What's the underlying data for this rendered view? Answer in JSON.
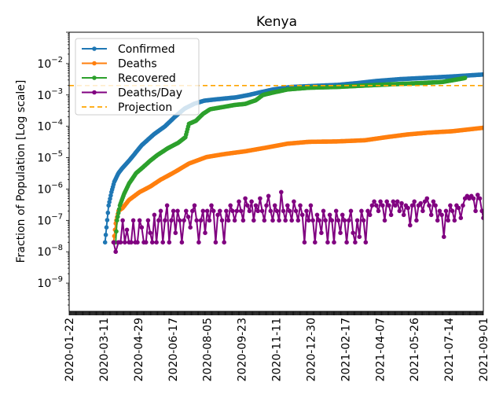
{
  "chart_data": {
    "type": "line",
    "title": "Kenya",
    "ylabel": "Fraction of Population [Log scale]",
    "xlabel": "",
    "yscale": "log",
    "ylim_exp": [
      -9.9,
      -1.0
    ],
    "xlim": [
      "2020-01-22",
      "2021-09-01"
    ],
    "x_tick_labels": [
      "2020-01-22",
      "2020-03-11",
      "2020-04-29",
      "2020-06-17",
      "2020-08-05",
      "2020-09-23",
      "2020-11-11",
      "2020-12-30",
      "2021-02-17",
      "2021-04-07",
      "2021-05-26",
      "2021-07-14",
      "2021-09-01"
    ],
    "y_ticks": [
      {
        "exp": -2,
        "base": "10",
        "sup": "−2"
      },
      {
        "exp": -3,
        "base": "10",
        "sup": "−3"
      },
      {
        "exp": -4,
        "base": "10",
        "sup": "−4"
      },
      {
        "exp": -5,
        "base": "10",
        "sup": "−5"
      },
      {
        "exp": -6,
        "base": "10",
        "sup": "−6"
      },
      {
        "exp": -7,
        "base": "10",
        "sup": "−7"
      },
      {
        "exp": -8,
        "base": "10",
        "sup": "−8"
      },
      {
        "exp": -9,
        "base": "10",
        "sup": "−9"
      }
    ],
    "legend_position": "top-left",
    "series": [
      {
        "name": "Confirmed",
        "color": "#1f77b4",
        "style": "line-dot",
        "points_day_value": [
          [
            51,
            2e-08
          ],
          [
            53,
            6e-08
          ],
          [
            56,
            3e-07
          ],
          [
            60,
            8e-07
          ],
          [
            64,
            1.7e-06
          ],
          [
            70,
            3.2e-06
          ],
          [
            75,
            4.5e-06
          ],
          [
            85,
            8e-06
          ],
          [
            95,
            1.5e-05
          ],
          [
            103,
            2.5e-05
          ],
          [
            120,
            5.5e-05
          ],
          [
            136,
            0.0001
          ],
          [
            150,
            0.0002
          ],
          [
            164,
            0.00037
          ],
          [
            178,
            0.00053
          ],
          [
            192,
            0.00066
          ],
          [
            215,
            0.00075
          ],
          [
            237,
            0.00084
          ],
          [
            255,
            0.001
          ],
          [
            270,
            0.0012
          ],
          [
            290,
            0.0015
          ],
          [
            315,
            0.0018
          ],
          [
            350,
            0.00195
          ],
          [
            382,
            0.0021
          ],
          [
            410,
            0.0024
          ],
          [
            437,
            0.0028
          ],
          [
            470,
            0.0032
          ],
          [
            504,
            0.0035
          ],
          [
            545,
            0.0039
          ],
          [
            588,
            0.0045
          ]
        ]
      },
      {
        "name": "Deaths",
        "color": "#ff7f0e",
        "style": "line-dot",
        "points_day_value": [
          [
            63,
            2e-08
          ],
          [
            66,
            8e-08
          ],
          [
            70,
            2e-07
          ],
          [
            76,
            2.5e-07
          ],
          [
            85,
            4.5e-07
          ],
          [
            100,
            8e-07
          ],
          [
            115,
            1.2e-06
          ],
          [
            130,
            2e-06
          ],
          [
            150,
            3.5e-06
          ],
          [
            170,
            6.5e-06
          ],
          [
            195,
            1.05e-05
          ],
          [
            220,
            1.3e-05
          ],
          [
            250,
            1.6e-05
          ],
          [
            280,
            2.1e-05
          ],
          [
            310,
            2.8e-05
          ],
          [
            340,
            3.2e-05
          ],
          [
            380,
            3.3e-05
          ],
          [
            420,
            3.6e-05
          ],
          [
            450,
            4.5e-05
          ],
          [
            480,
            5.5e-05
          ],
          [
            510,
            6.3e-05
          ],
          [
            545,
            7e-05
          ],
          [
            588,
            9e-05
          ]
        ]
      },
      {
        "name": "Recovered",
        "color": "#2ca02c",
        "style": "line-dot",
        "points_day_value": [
          [
            66,
            2e-08
          ],
          [
            68,
            1e-07
          ],
          [
            72,
            3e-07
          ],
          [
            78,
            7e-07
          ],
          [
            85,
            1.5e-06
          ],
          [
            95,
            3.2e-06
          ],
          [
            105,
            5e-06
          ],
          [
            115,
            8e-06
          ],
          [
            125,
            1.2e-05
          ],
          [
            140,
            2e-05
          ],
          [
            155,
            3e-05
          ],
          [
            165,
            4.5e-05
          ],
          [
            170,
            0.00012
          ],
          [
            180,
            0.00015
          ],
          [
            190,
            0.00025
          ],
          [
            200,
            0.00035
          ],
          [
            215,
            0.0004
          ],
          [
            235,
            0.00048
          ],
          [
            250,
            0.00052
          ],
          [
            265,
            0.00068
          ],
          [
            275,
            0.001
          ],
          [
            290,
            0.0012
          ],
          [
            310,
            0.0015
          ],
          [
            340,
            0.0017
          ],
          [
            380,
            0.0018
          ],
          [
            420,
            0.002
          ],
          [
            460,
            0.0022
          ],
          [
            500,
            0.0024
          ],
          [
            530,
            0.0026
          ],
          [
            560,
            0.0034
          ],
          [
            562,
            0.0035
          ]
        ]
      },
      {
        "name": "Deaths/Day",
        "color": "#800080",
        "style": "line-dot",
        "points_day_value": [
          [
            63,
            2e-08
          ],
          [
            66,
            1e-08
          ],
          [
            70,
            2e-08
          ],
          [
            73,
            2e-08
          ],
          [
            76,
            1e-07
          ],
          [
            79,
            2e-08
          ],
          [
            82,
            5e-08
          ],
          [
            85,
            2e-08
          ],
          [
            88,
            2e-08
          ],
          [
            91,
            1e-07
          ],
          [
            94,
            2e-08
          ],
          [
            97,
            2e-08
          ],
          [
            100,
            1e-07
          ],
          [
            103,
            6e-08
          ],
          [
            106,
            2e-08
          ],
          [
            109,
            2e-08
          ],
          [
            112,
            1e-07
          ],
          [
            115,
            4e-08
          ],
          [
            118,
            2e-08
          ],
          [
            121,
            1.5e-07
          ],
          [
            124,
            2e-08
          ],
          [
            127,
            1e-07
          ],
          [
            130,
            2e-07
          ],
          [
            133,
            2e-08
          ],
          [
            136,
            1e-07
          ],
          [
            139,
            3e-07
          ],
          [
            142,
            2e-08
          ],
          [
            145,
            1e-07
          ],
          [
            148,
            2e-07
          ],
          [
            151,
            4e-08
          ],
          [
            154,
            2e-07
          ],
          [
            157,
            1e-07
          ],
          [
            160,
            2e-08
          ],
          [
            163,
            1e-07
          ],
          [
            166,
            2e-07
          ],
          [
            169,
            1.3e-07
          ],
          [
            172,
            6e-08
          ],
          [
            175,
            2e-07
          ],
          [
            178,
            3e-07
          ],
          [
            181,
            1e-07
          ],
          [
            184,
            2e-08
          ],
          [
            187,
            1e-07
          ],
          [
            190,
            2e-07
          ],
          [
            193,
            4e-08
          ],
          [
            196,
            2e-07
          ],
          [
            199,
            1e-07
          ],
          [
            202,
            3e-07
          ],
          [
            205,
            2e-07
          ],
          [
            208,
            2e-08
          ],
          [
            211,
            1.5e-07
          ],
          [
            214,
            2e-07
          ],
          [
            217,
            1e-07
          ],
          [
            220,
            2e-08
          ],
          [
            223,
            2e-07
          ],
          [
            226,
            1e-07
          ],
          [
            229,
            3e-07
          ],
          [
            232,
            2e-07
          ],
          [
            235,
            1e-07
          ],
          [
            238,
            2e-07
          ],
          [
            241,
            4e-07
          ],
          [
            244,
            2e-07
          ],
          [
            247,
            1e-07
          ],
          [
            250,
            5e-07
          ],
          [
            253,
            3e-07
          ],
          [
            256,
            2e-07
          ],
          [
            259,
            4e-07
          ],
          [
            262,
            1e-07
          ],
          [
            265,
            3e-07
          ],
          [
            268,
            2e-07
          ],
          [
            271,
            5e-07
          ],
          [
            274,
            2e-07
          ],
          [
            277,
            1e-07
          ],
          [
            280,
            3e-07
          ],
          [
            283,
            6e-07
          ],
          [
            286,
            2e-07
          ],
          [
            289,
            1e-07
          ],
          [
            292,
            3e-07
          ],
          [
            295,
            2e-07
          ],
          [
            298,
            1e-07
          ],
          [
            301,
            8e-07
          ],
          [
            304,
            2e-07
          ],
          [
            307,
            1e-07
          ],
          [
            310,
            3e-07
          ],
          [
            313,
            2e-07
          ],
          [
            316,
            1e-07
          ],
          [
            319,
            4e-07
          ],
          [
            322,
            2e-07
          ],
          [
            325,
            1e-07
          ],
          [
            328,
            3e-07
          ],
          [
            331,
            1.5e-07
          ],
          [
            334,
            2e-08
          ],
          [
            337,
            2e-07
          ],
          [
            340,
            1e-07
          ],
          [
            343,
            3e-07
          ],
          [
            346,
            1e-07
          ],
          [
            349,
            2e-08
          ],
          [
            352,
            1.5e-07
          ],
          [
            355,
            1e-07
          ],
          [
            358,
            4e-08
          ],
          [
            361,
            2e-07
          ],
          [
            364,
            1e-07
          ],
          [
            367,
            2e-08
          ],
          [
            370,
            1.5e-07
          ],
          [
            373,
            1e-07
          ],
          [
            376,
            2e-08
          ],
          [
            379,
            2e-07
          ],
          [
            382,
            1e-07
          ],
          [
            385,
            4e-08
          ],
          [
            388,
            1.5e-07
          ],
          [
            391,
            1e-07
          ],
          [
            394,
            2e-08
          ],
          [
            397,
            1e-07
          ],
          [
            400,
            2e-07
          ],
          [
            403,
            4e-08
          ],
          [
            406,
            2e-08
          ],
          [
            409,
            1e-07
          ],
          [
            412,
            3e-08
          ],
          [
            415,
            2e-07
          ],
          [
            418,
            1e-07
          ],
          [
            421,
            2e-08
          ],
          [
            424,
            2e-07
          ],
          [
            427,
            1.5e-07
          ],
          [
            430,
            3e-07
          ],
          [
            433,
            4e-07
          ],
          [
            436,
            3e-07
          ],
          [
            439,
            2e-07
          ],
          [
            442,
            4e-07
          ],
          [
            445,
            3e-07
          ],
          [
            448,
            1e-07
          ],
          [
            451,
            4e-07
          ],
          [
            454,
            3e-07
          ],
          [
            457,
            1.5e-07
          ],
          [
            460,
            4e-07
          ],
          [
            463,
            3e-07
          ],
          [
            466,
            4e-07
          ],
          [
            469,
            2e-07
          ],
          [
            472,
            3.5e-07
          ],
          [
            475,
            1.5e-07
          ],
          [
            478,
            3e-07
          ],
          [
            481,
            2.5e-07
          ],
          [
            484,
            7e-08
          ],
          [
            487,
            3e-07
          ],
          [
            490,
            4e-07
          ],
          [
            493,
            1e-07
          ],
          [
            496,
            3e-07
          ],
          [
            499,
            3.5e-07
          ],
          [
            502,
            2e-07
          ],
          [
            505,
            4e-07
          ],
          [
            508,
            5e-07
          ],
          [
            511,
            3e-07
          ],
          [
            514,
            1.5e-07
          ],
          [
            517,
            4e-07
          ],
          [
            520,
            3e-07
          ],
          [
            523,
            1e-07
          ],
          [
            526,
            2e-07
          ],
          [
            529,
            1.5e-07
          ],
          [
            532,
            3e-08
          ],
          [
            535,
            2e-07
          ],
          [
            538,
            1e-07
          ],
          [
            541,
            3e-07
          ],
          [
            544,
            2e-07
          ],
          [
            547,
            1e-07
          ],
          [
            550,
            3e-07
          ],
          [
            553,
            2.5e-07
          ],
          [
            556,
            1.2e-07
          ],
          [
            559,
            3e-07
          ],
          [
            562,
            5e-07
          ],
          [
            565,
            6e-07
          ],
          [
            568,
            5e-07
          ],
          [
            571,
            6e-07
          ],
          [
            574,
            5e-07
          ],
          [
            577,
            2e-07
          ],
          [
            580,
            6.5e-07
          ],
          [
            583,
            5e-07
          ],
          [
            586,
            2e-07
          ],
          [
            588,
            1.2e-07
          ]
        ]
      }
    ],
    "projection": {
      "name": "Projection",
      "color": "#ffa500",
      "value": 0.002,
      "style": "dashed"
    }
  }
}
